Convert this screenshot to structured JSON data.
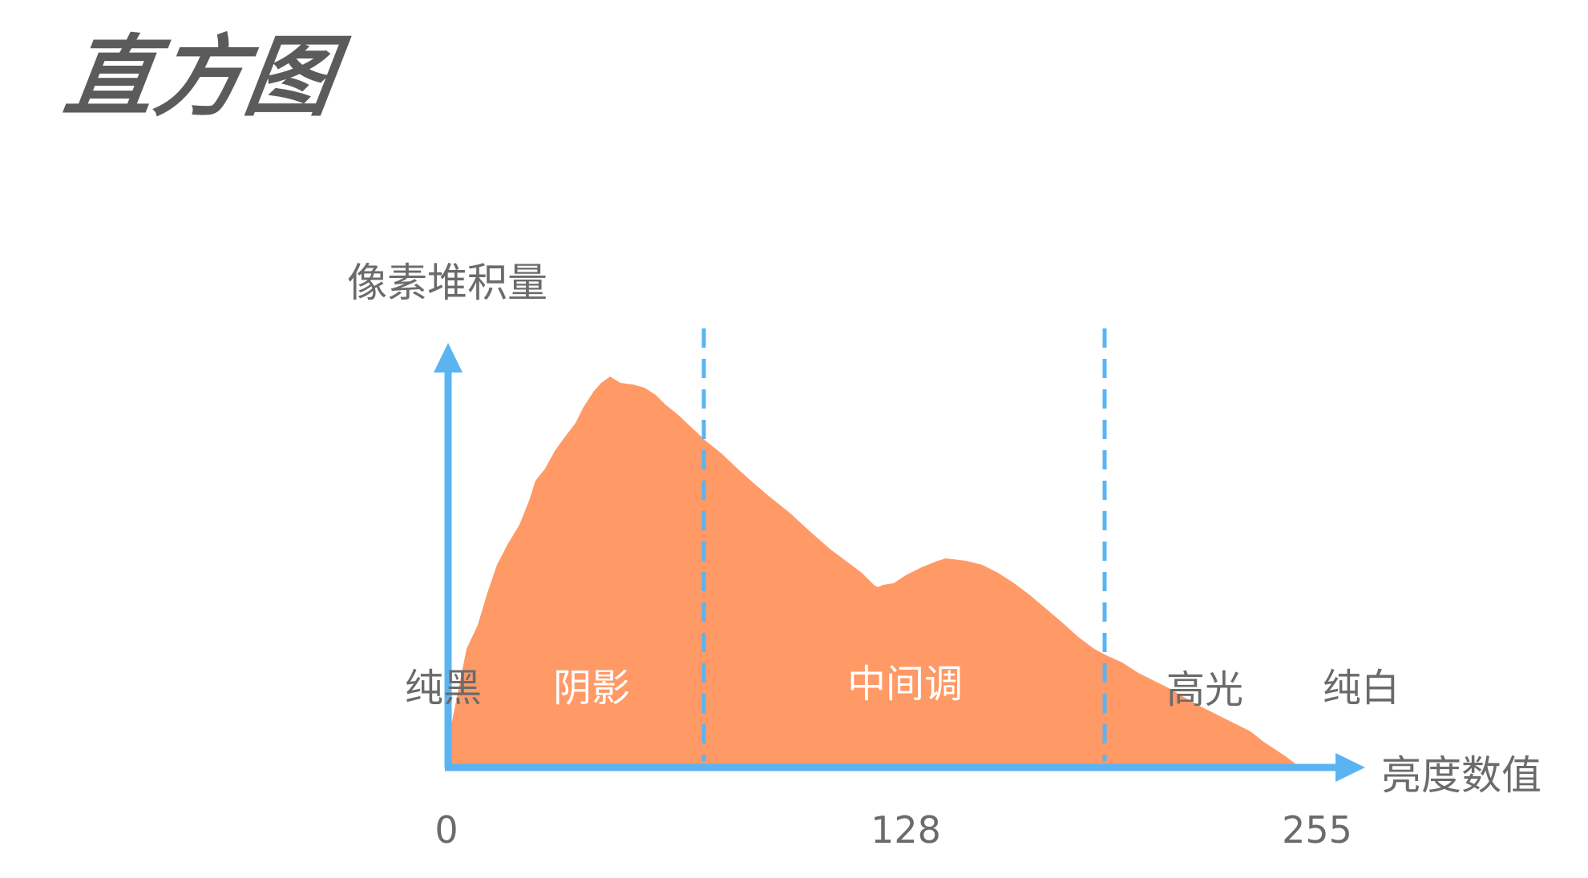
{
  "title": "直方图",
  "y_axis_label": "像素堆积量",
  "x_axis_label": "亮度数值",
  "ticks": [
    "0",
    "128",
    "255"
  ],
  "zones": {
    "pure_black": "纯黑",
    "shadows": "阴影",
    "midtones": "中间调",
    "highlights": "高光",
    "pure_white": "纯白"
  },
  "colors": {
    "axis": "#5ab4f2",
    "fill": "#ff9966",
    "title": "#5b5b5b",
    "label": "#6b6b6b",
    "zone_label_on_fill": "#ffffff"
  }
}
